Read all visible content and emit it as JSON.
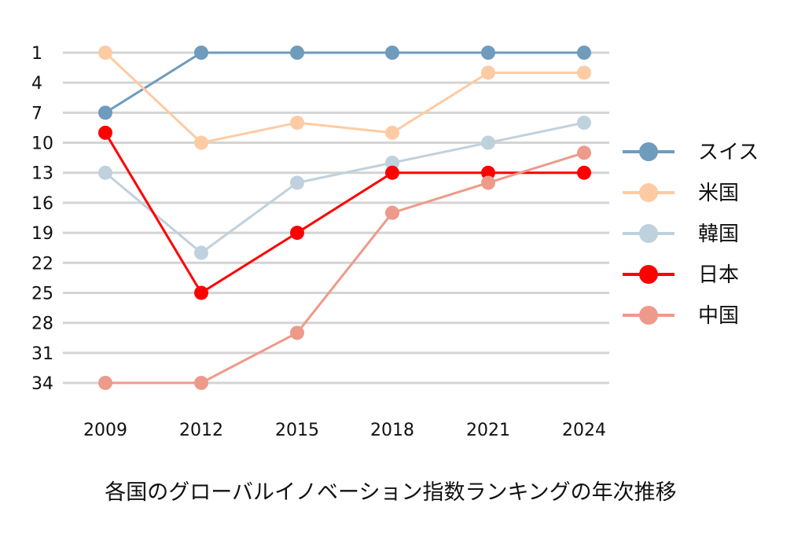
{
  "chart_data": {
    "type": "line",
    "title": "各国のグローバルイノベーション指数ランキングの年次推移",
    "xlabel": "",
    "ylabel": "",
    "x": [
      "2009",
      "2012",
      "2015",
      "2018",
      "2021",
      "2024"
    ],
    "yticks": [
      1,
      4,
      7,
      10,
      13,
      16,
      19,
      22,
      25,
      28,
      31,
      34
    ],
    "ylim": [
      1,
      34
    ],
    "y_inverted": true,
    "grid": true,
    "legend_position": "right",
    "series": [
      {
        "name": "スイス",
        "color": "#6f9bbd",
        "values": [
          7,
          1,
          1,
          1,
          1,
          1
        ]
      },
      {
        "name": "米国",
        "color": "#fdcba3",
        "values": [
          1,
          10,
          8,
          9,
          3,
          3
        ]
      },
      {
        "name": "韓国",
        "color": "#bfd1dd",
        "values": [
          13,
          21,
          14,
          12,
          10,
          8
        ]
      },
      {
        "name": "日本",
        "color": "#ff0000",
        "values": [
          9,
          25,
          19,
          13,
          13,
          13
        ]
      },
      {
        "name": "中国",
        "color": "#ee9a8a",
        "values": [
          34,
          34,
          29,
          17,
          14,
          11
        ]
      }
    ]
  }
}
